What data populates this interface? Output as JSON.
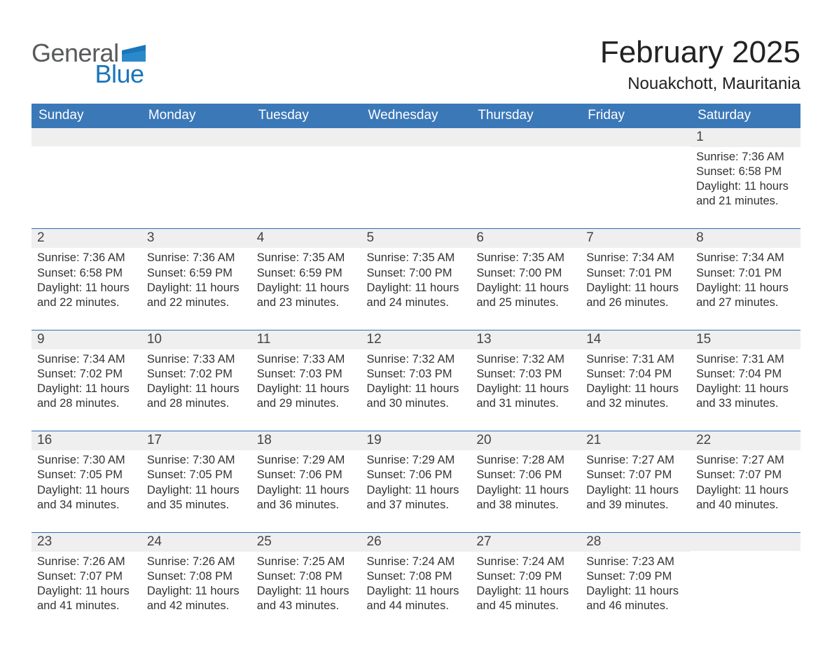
{
  "logo": {
    "word1": "General",
    "word2": "Blue"
  },
  "title": "February 2025",
  "location": "Nouakchott, Mauritania",
  "colors": {
    "header_bg": "#3b78b8",
    "accent_line": "#2a6db5",
    "day_bg": "#efefef",
    "page_bg": "#ffffff",
    "text": "#333333",
    "logo_gray": "#58595b",
    "logo_blue": "#1b75bb"
  },
  "fonts": {
    "family": "Arial",
    "title_size_pt": 33,
    "location_size_pt": 18,
    "header_size_pt": 14,
    "body_size_pt": 12
  },
  "weekday_headers": [
    "Sunday",
    "Monday",
    "Tuesday",
    "Wednesday",
    "Thursday",
    "Friday",
    "Saturday"
  ],
  "labels": {
    "sunrise": "Sunrise:",
    "sunset": "Sunset:",
    "daylight": "Daylight:"
  },
  "weeks": [
    [
      null,
      null,
      null,
      null,
      null,
      null,
      {
        "n": "1",
        "sunrise": "7:36 AM",
        "sunset": "6:58 PM",
        "daylight": "11 hours and 21 minutes."
      }
    ],
    [
      {
        "n": "2",
        "sunrise": "7:36 AM",
        "sunset": "6:58 PM",
        "daylight": "11 hours and 22 minutes."
      },
      {
        "n": "3",
        "sunrise": "7:36 AM",
        "sunset": "6:59 PM",
        "daylight": "11 hours and 22 minutes."
      },
      {
        "n": "4",
        "sunrise": "7:35 AM",
        "sunset": "6:59 PM",
        "daylight": "11 hours and 23 minutes."
      },
      {
        "n": "5",
        "sunrise": "7:35 AM",
        "sunset": "7:00 PM",
        "daylight": "11 hours and 24 minutes."
      },
      {
        "n": "6",
        "sunrise": "7:35 AM",
        "sunset": "7:00 PM",
        "daylight": "11 hours and 25 minutes."
      },
      {
        "n": "7",
        "sunrise": "7:34 AM",
        "sunset": "7:01 PM",
        "daylight": "11 hours and 26 minutes."
      },
      {
        "n": "8",
        "sunrise": "7:34 AM",
        "sunset": "7:01 PM",
        "daylight": "11 hours and 27 minutes."
      }
    ],
    [
      {
        "n": "9",
        "sunrise": "7:34 AM",
        "sunset": "7:02 PM",
        "daylight": "11 hours and 28 minutes."
      },
      {
        "n": "10",
        "sunrise": "7:33 AM",
        "sunset": "7:02 PM",
        "daylight": "11 hours and 28 minutes."
      },
      {
        "n": "11",
        "sunrise": "7:33 AM",
        "sunset": "7:03 PM",
        "daylight": "11 hours and 29 minutes."
      },
      {
        "n": "12",
        "sunrise": "7:32 AM",
        "sunset": "7:03 PM",
        "daylight": "11 hours and 30 minutes."
      },
      {
        "n": "13",
        "sunrise": "7:32 AM",
        "sunset": "7:03 PM",
        "daylight": "11 hours and 31 minutes."
      },
      {
        "n": "14",
        "sunrise": "7:31 AM",
        "sunset": "7:04 PM",
        "daylight": "11 hours and 32 minutes."
      },
      {
        "n": "15",
        "sunrise": "7:31 AM",
        "sunset": "7:04 PM",
        "daylight": "11 hours and 33 minutes."
      }
    ],
    [
      {
        "n": "16",
        "sunrise": "7:30 AM",
        "sunset": "7:05 PM",
        "daylight": "11 hours and 34 minutes."
      },
      {
        "n": "17",
        "sunrise": "7:30 AM",
        "sunset": "7:05 PM",
        "daylight": "11 hours and 35 minutes."
      },
      {
        "n": "18",
        "sunrise": "7:29 AM",
        "sunset": "7:06 PM",
        "daylight": "11 hours and 36 minutes."
      },
      {
        "n": "19",
        "sunrise": "7:29 AM",
        "sunset": "7:06 PM",
        "daylight": "11 hours and 37 minutes."
      },
      {
        "n": "20",
        "sunrise": "7:28 AM",
        "sunset": "7:06 PM",
        "daylight": "11 hours and 38 minutes."
      },
      {
        "n": "21",
        "sunrise": "7:27 AM",
        "sunset": "7:07 PM",
        "daylight": "11 hours and 39 minutes."
      },
      {
        "n": "22",
        "sunrise": "7:27 AM",
        "sunset": "7:07 PM",
        "daylight": "11 hours and 40 minutes."
      }
    ],
    [
      {
        "n": "23",
        "sunrise": "7:26 AM",
        "sunset": "7:07 PM",
        "daylight": "11 hours and 41 minutes."
      },
      {
        "n": "24",
        "sunrise": "7:26 AM",
        "sunset": "7:08 PM",
        "daylight": "11 hours and 42 minutes."
      },
      {
        "n": "25",
        "sunrise": "7:25 AM",
        "sunset": "7:08 PM",
        "daylight": "11 hours and 43 minutes."
      },
      {
        "n": "26",
        "sunrise": "7:24 AM",
        "sunset": "7:08 PM",
        "daylight": "11 hours and 44 minutes."
      },
      {
        "n": "27",
        "sunrise": "7:24 AM",
        "sunset": "7:09 PM",
        "daylight": "11 hours and 45 minutes."
      },
      {
        "n": "28",
        "sunrise": "7:23 AM",
        "sunset": "7:09 PM",
        "daylight": "11 hours and 46 minutes."
      },
      null
    ]
  ]
}
